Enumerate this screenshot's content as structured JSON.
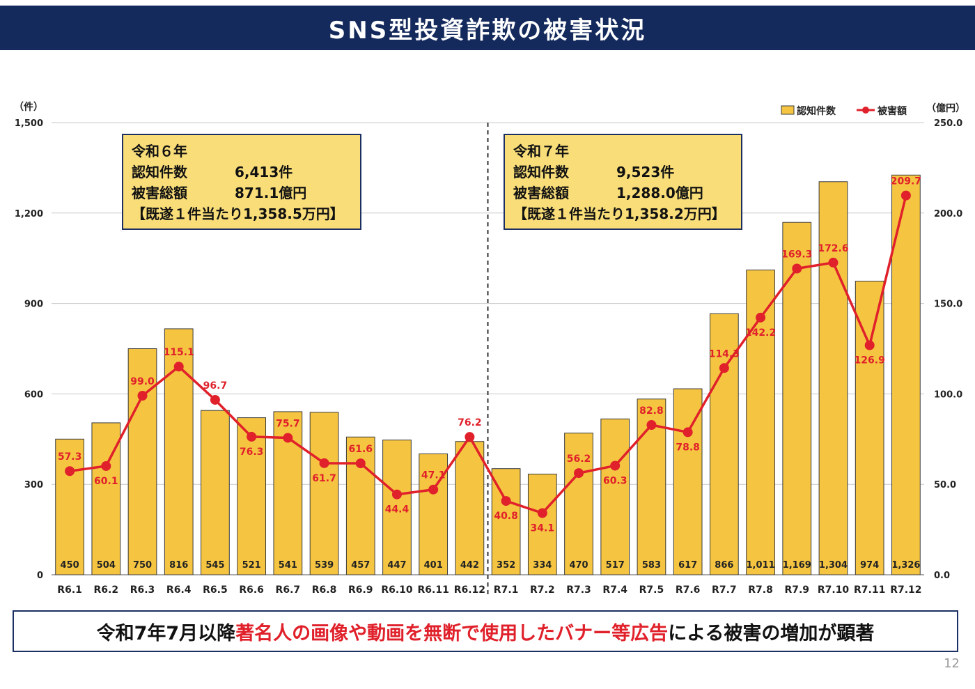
{
  "title": "SNS型投資詐欺の被害状況",
  "unit_left": "（件）",
  "unit_right": "（億円）",
  "legend": {
    "bar": "認知件数",
    "line": "被害額"
  },
  "colors": {
    "bar": "#f5c542",
    "bar_border": "#3a3a3a",
    "line": "#e0202a",
    "banner": "#14295c",
    "box": "#f8dd79"
  },
  "box_r6": {
    "year": "令和６年",
    "count_label": "認知件数",
    "count_value": "6,413件",
    "damage_label": "被害総額",
    "damage_value": "871.1億円",
    "per_case": "【既遂１件当たり1,358.5万円】"
  },
  "box_r7": {
    "year": "令和７年",
    "count_label": "認知件数",
    "count_value": "9,523件",
    "damage_label": "被害総額",
    "damage_value": "1,288.0億円",
    "per_case": "【既遂１件当たり1,358.2万円】"
  },
  "footer": {
    "pre": "令和7年7月以降",
    "highlight": "著名人の画像や動画を無断で使用したバナー等広告",
    "post": "による被害の増加が顕著"
  },
  "page_number": "12",
  "chart_data": {
    "type": "bar",
    "categories": [
      "R6.1",
      "R6.2",
      "R6.3",
      "R6.4",
      "R6.5",
      "R6.6",
      "R6.7",
      "R6.8",
      "R6.9",
      "R6.10",
      "R6.11",
      "R6.12",
      "R7.1",
      "R7.2",
      "R7.3",
      "R7.4",
      "R7.5",
      "R7.6",
      "R7.7",
      "R7.8",
      "R7.9",
      "R7.10",
      "R7.11",
      "R7.12"
    ],
    "series": [
      {
        "name": "認知件数",
        "type": "bar",
        "axis": "left",
        "values": [
          450,
          504,
          750,
          816,
          545,
          521,
          541,
          539,
          457,
          447,
          401,
          442,
          352,
          334,
          470,
          517,
          583,
          617,
          866,
          1011,
          1169,
          1304,
          974,
          1326
        ],
        "labels": [
          "450",
          "504",
          "750",
          "816",
          "545",
          "521",
          "541",
          "539",
          "457",
          "447",
          "401",
          "442",
          "352",
          "334",
          "470",
          "517",
          "583",
          "617",
          "866",
          "1,011",
          "1,169",
          "1,304",
          "974",
          "1,326"
        ]
      },
      {
        "name": "被害額",
        "type": "line",
        "axis": "right",
        "values": [
          57.3,
          60.1,
          99.0,
          115.1,
          96.7,
          76.3,
          75.7,
          61.7,
          61.6,
          44.4,
          47.1,
          76.2,
          40.8,
          34.1,
          56.2,
          60.3,
          82.8,
          78.8,
          114.3,
          142.2,
          169.3,
          172.6,
          126.9,
          209.7
        ],
        "labels": [
          "57.3",
          "60.1",
          "99.0",
          "115.1",
          "96.7",
          "76.3",
          "75.7",
          "61.7",
          "61.6",
          "44.4",
          "47.1",
          "76.2",
          "40.8",
          "34.1",
          "56.2",
          "60.3",
          "82.8",
          "78.8",
          "114.3",
          "142.2",
          "169.3",
          "172.6",
          "126.9",
          "209.7"
        ],
        "label_position": [
          "above",
          "below",
          "above",
          "above",
          "above",
          "below",
          "above",
          "below",
          "above",
          "below",
          "above",
          "above",
          "below",
          "below",
          "above",
          "below",
          "above",
          "below",
          "above",
          "below",
          "above",
          "above",
          "below",
          "above"
        ]
      }
    ],
    "y_left": {
      "min": 0,
      "max": 1500,
      "ticks": [
        0,
        300,
        600,
        900,
        1200,
        1500
      ],
      "tick_labels": [
        "0",
        "300",
        "600",
        "900",
        "1,200",
        "1,500"
      ]
    },
    "y_right": {
      "min": 0,
      "max": 250,
      "ticks": [
        0,
        50,
        100,
        150,
        200,
        250
      ],
      "tick_labels": [
        "0.0",
        "50.0",
        "100.0",
        "150.0",
        "200.0",
        "250.0"
      ]
    },
    "grid": true,
    "legend_position": "top-right",
    "divider_between": [
      "R6.12",
      "R7.1"
    ]
  }
}
